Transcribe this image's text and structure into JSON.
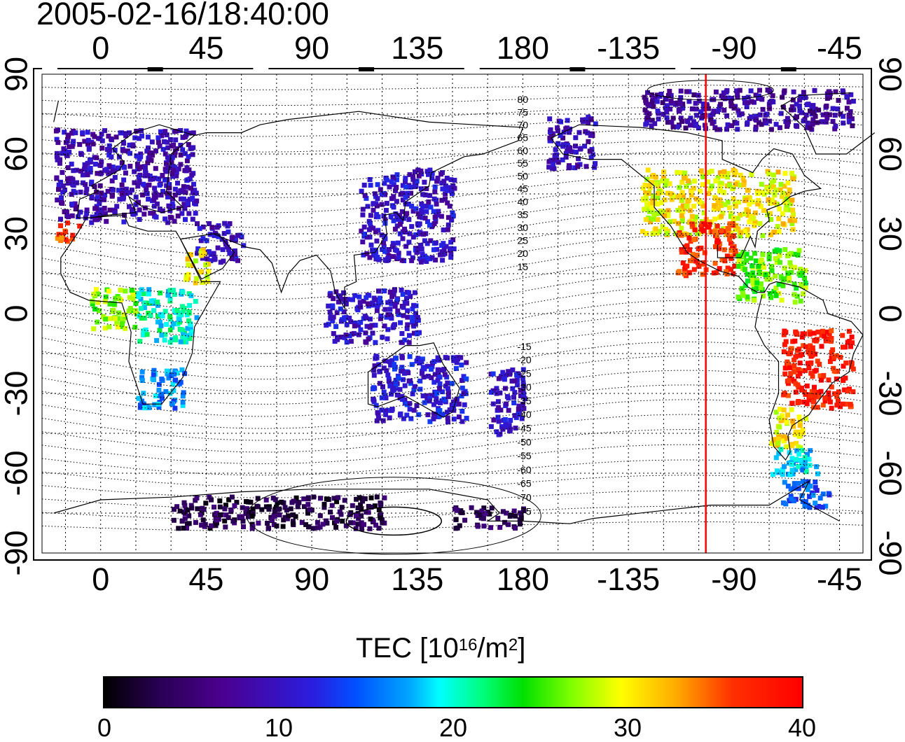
{
  "timestamp": "2005-02-16/18:40:00",
  "map_axes": {
    "lon_labels_top": [
      "0",
      "45",
      "90",
      "135",
      "180",
      "-135",
      "-90",
      "-45"
    ],
    "lon_labels_bottom": [
      "0",
      "45",
      "90",
      "135",
      "180",
      "-135",
      "-90",
      "-45"
    ],
    "lat_labels_left": [
      "90",
      "60",
      "30",
      "0",
      "-30",
      "-60",
      "-90"
    ],
    "lat_labels_right": [
      "90",
      "60",
      "30",
      "0",
      "-30",
      "-60",
      "-90"
    ],
    "lon_range": [
      -25,
      325
    ],
    "lat_range": [
      -90,
      90
    ],
    "grid": true,
    "grid_style": "dotted"
  },
  "contour_labels_north": [
    "80",
    "75",
    "70",
    "65",
    "60",
    "55",
    "50",
    "45",
    "40",
    "35",
    "30",
    "25",
    "20",
    "15"
  ],
  "contour_labels_south": [
    "-15",
    "-20",
    "-25",
    "-30",
    "-35",
    "-40",
    "-45",
    "-50",
    "-55",
    "-60",
    "-65",
    "-70",
    "-75"
  ],
  "contour_label_lat_north": [
    80,
    75,
    70,
    65,
    60,
    55,
    50,
    45,
    40,
    35,
    30,
    25,
    20,
    15
  ],
  "contour_label_lat_south": [
    -15,
    -20,
    -25,
    -30,
    -35,
    -40,
    -45,
    -50,
    -55,
    -60,
    -65,
    -70,
    -75
  ],
  "marker_line": {
    "longitude": -102,
    "color": "#ff0000"
  },
  "colorbar": {
    "title_main": "TEC  [10",
    "title_exp1": "16",
    "title_mid": "/m",
    "title_exp2": "2",
    "title_end": "]",
    "ticks": [
      "0",
      "10",
      "20",
      "30",
      "40"
    ],
    "min": 0,
    "max": 40
  },
  "chart_data": {
    "type": "heatmap",
    "variable": "TEC",
    "units": "10^16/m^2",
    "regions": [
      {
        "lon": [
          -20,
          40
        ],
        "lat": [
          35,
          70
        ],
        "value": 9
      },
      {
        "lon": [
          -20,
          -10
        ],
        "lat": [
          28,
          35
        ],
        "value": 36
      },
      {
        "lon": [
          40,
          60
        ],
        "lat": [
          20,
          35
        ],
        "value": 10
      },
      {
        "lon": [
          35,
          45
        ],
        "lat": [
          12,
          25
        ],
        "value": 30
      },
      {
        "lon": [
          -5,
          15
        ],
        "lat": [
          -5,
          10
        ],
        "value": 27
      },
      {
        "lon": [
          15,
          40
        ],
        "lat": [
          -10,
          10
        ],
        "value": 20
      },
      {
        "lon": [
          15,
          35
        ],
        "lat": [
          -35,
          -20
        ],
        "value": 16
      },
      {
        "lon": [
          110,
          150
        ],
        "lat": [
          20,
          55
        ],
        "value": 10
      },
      {
        "lon": [
          95,
          135
        ],
        "lat": [
          -10,
          10
        ],
        "value": 10
      },
      {
        "lon": [
          115,
          155
        ],
        "lat": [
          -40,
          -15
        ],
        "value": 11
      },
      {
        "lon": [
          165,
          180
        ],
        "lat": [
          -45,
          -20
        ],
        "value": 10
      },
      {
        "lon": [
          -170,
          -150
        ],
        "lat": [
          55,
          75
        ],
        "value": 9
      },
      {
        "lon": [
          -130,
          -65
        ],
        "lat": [
          30,
          55
        ],
        "value": 30
      },
      {
        "lon": [
          -115,
          -90
        ],
        "lat": [
          15,
          35
        ],
        "value": 37
      },
      {
        "lon": [
          -90,
          -60
        ],
        "lat": [
          5,
          25
        ],
        "value": 26
      },
      {
        "lon": [
          -70,
          -40
        ],
        "lat": [
          -35,
          -5
        ],
        "value": 38
      },
      {
        "lon": [
          -75,
          -60
        ],
        "lat": [
          -50,
          -35
        ],
        "value": 30
      },
      {
        "lon": [
          -75,
          -55
        ],
        "lat": [
          -60,
          -50
        ],
        "value": 18
      },
      {
        "lon": [
          -70,
          -50
        ],
        "lat": [
          -72,
          -62
        ],
        "value": 14
      },
      {
        "lon": [
          30,
          120
        ],
        "lat": [
          -80,
          -68
        ],
        "value": 3
      },
      {
        "lon": [
          150,
          180
        ],
        "lat": [
          -80,
          -72
        ],
        "value": 4
      },
      {
        "lon": [
          -130,
          -40
        ],
        "lat": [
          70,
          85
        ],
        "value": 8
      }
    ]
  }
}
